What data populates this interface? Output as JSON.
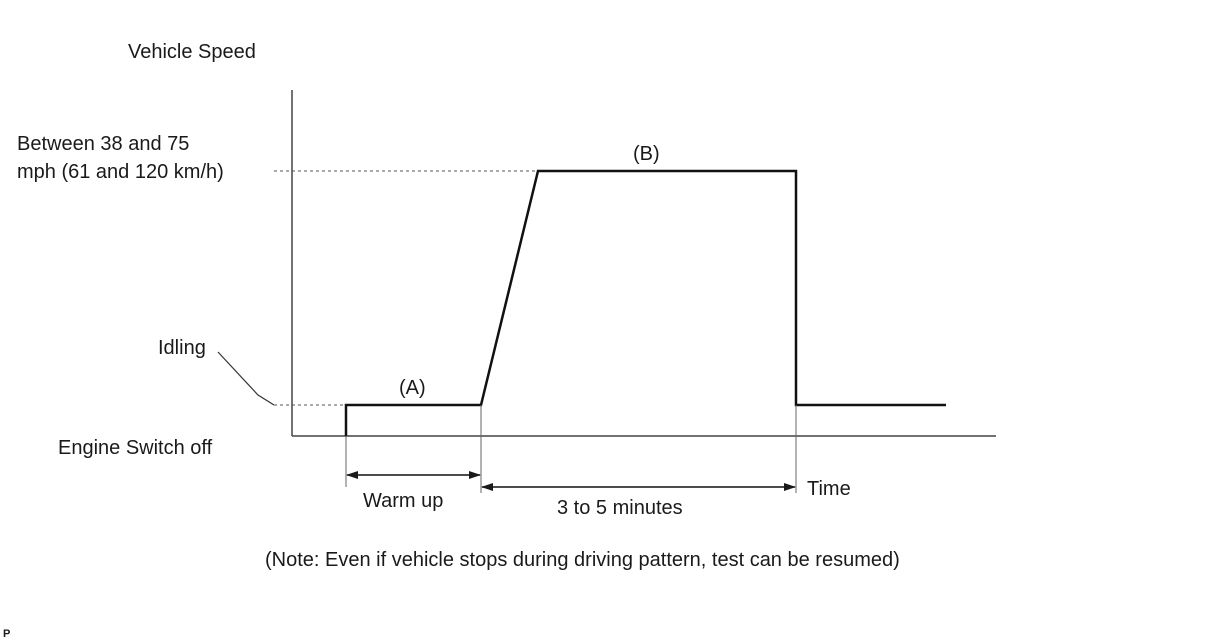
{
  "diagram": {
    "axis_label_y": "Vehicle Speed",
    "speed_level_line1": "Between 38 and 75",
    "speed_level_line2": "mph (61 and 120 km/h)",
    "idling_label": "Idling",
    "engine_off_label": "Engine Switch off",
    "phase_a_label": "(A)",
    "phase_b_label": "(B)",
    "warm_up_label": "Warm up",
    "duration_label": "3 to 5 minutes",
    "axis_label_x": "Time",
    "note": "(Note: Even if vehicle stops during driving pattern, test can be resumed)",
    "corner_mark": "P"
  }
}
